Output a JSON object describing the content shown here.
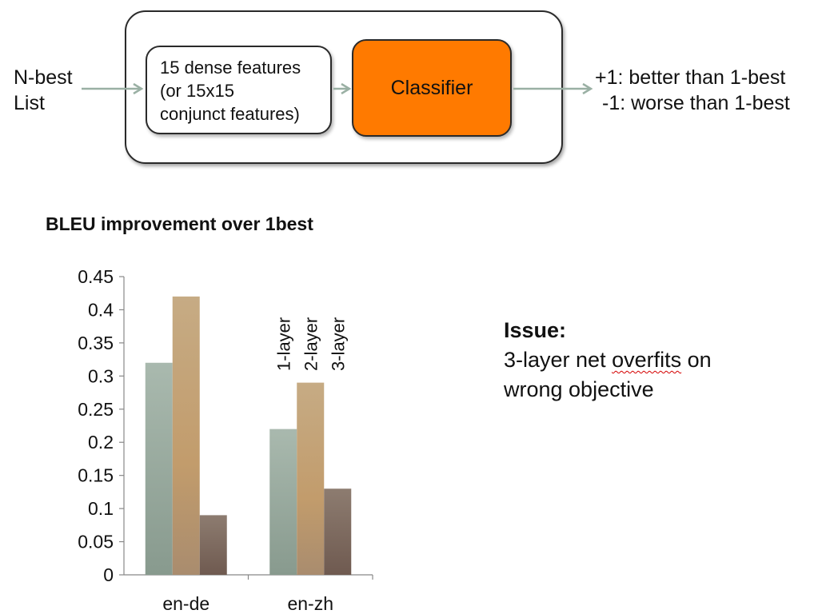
{
  "diagram": {
    "input_label_lines": [
      "N-best",
      "List"
    ],
    "feature_box_lines": [
      "15 dense features",
      "(or 15x15",
      "conjunct features)"
    ],
    "classifier_label": "Classifier",
    "output_lines": [
      "+1: better than 1-best",
      "-1: worse than 1-best"
    ],
    "colors": {
      "classifier": "#ff7a00",
      "arrow": "#9ab0a4",
      "border": "#2a2a2a"
    }
  },
  "chart_data": {
    "type": "bar",
    "title": "BLEU improvement over 1best",
    "xlabel": "",
    "ylabel": "",
    "categories": [
      "en-de",
      "en-zh"
    ],
    "series": [
      {
        "name": "1-layer",
        "values": [
          0.32,
          0.22
        ],
        "color": "#a2b3a8"
      },
      {
        "name": "2-layer",
        "values": [
          0.42,
          0.29
        ],
        "color": "#c4a47a"
      },
      {
        "name": "3-layer",
        "values": [
          0.09,
          0.13
        ],
        "color": "#8a7468"
      }
    ],
    "ylim": [
      0,
      0.45
    ],
    "yticks": [
      "0",
      "0.05",
      "0.1",
      "0.15",
      "0.2",
      "0.25",
      "0.3",
      "0.35",
      "0.4",
      "0.45"
    ],
    "grid": false,
    "legend": "rotated labels above en-zh bars"
  },
  "note": {
    "heading": "Issue:",
    "line1_before": "3-layer net ",
    "line1_squiggle": "overfits",
    "line1_after": " on",
    "line2": "wrong objective"
  }
}
